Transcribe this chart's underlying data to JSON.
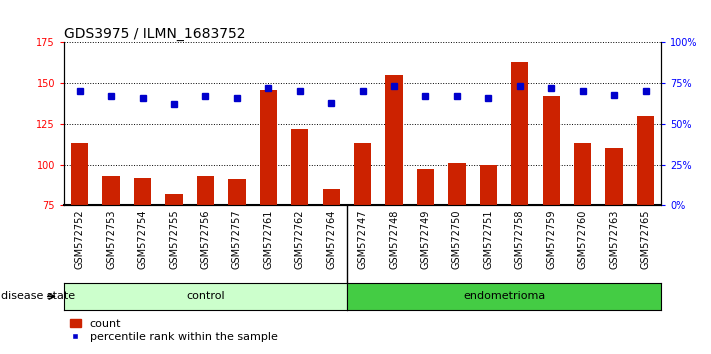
{
  "title": "GDS3975 / ILMN_1683752",
  "samples": [
    "GSM572752",
    "GSM572753",
    "GSM572754",
    "GSM572755",
    "GSM572756",
    "GSM572757",
    "GSM572761",
    "GSM572762",
    "GSM572764",
    "GSM572747",
    "GSM572748",
    "GSM572749",
    "GSM572750",
    "GSM572751",
    "GSM572758",
    "GSM572759",
    "GSM572760",
    "GSM572763",
    "GSM572765"
  ],
  "bar_values": [
    113,
    93,
    92,
    82,
    93,
    91,
    146,
    122,
    85,
    113,
    155,
    97,
    101,
    100,
    163,
    142,
    113,
    110,
    130
  ],
  "dot_values_pct": [
    70,
    67,
    66,
    62,
    67,
    66,
    72,
    70,
    63,
    70,
    73,
    67,
    67,
    66,
    73,
    72,
    70,
    68,
    70
  ],
  "n_control": 9,
  "n_endometrioma": 10,
  "ylim_left": [
    75,
    175
  ],
  "ylim_right": [
    0,
    100
  ],
  "yticks_left": [
    75,
    100,
    125,
    150,
    175
  ],
  "yticks_right": [
    0,
    25,
    50,
    75,
    100
  ],
  "ytick_labels_right": [
    "0%",
    "25%",
    "50%",
    "75%",
    "100%"
  ],
  "bar_color": "#cc2200",
  "dot_color": "#0000cc",
  "control_bg": "#ccffcc",
  "endometrioma_bg": "#44cc44",
  "xlabel_bg": "#cccccc",
  "title_fontsize": 10,
  "tick_fontsize": 7,
  "label_fontsize": 8,
  "legend_fontsize": 8,
  "disease_state_label": "disease state",
  "control_label": "control",
  "endometrioma_label": "endometrioma",
  "legend_bar_label": "count",
  "legend_dot_label": "percentile rank within the sample"
}
